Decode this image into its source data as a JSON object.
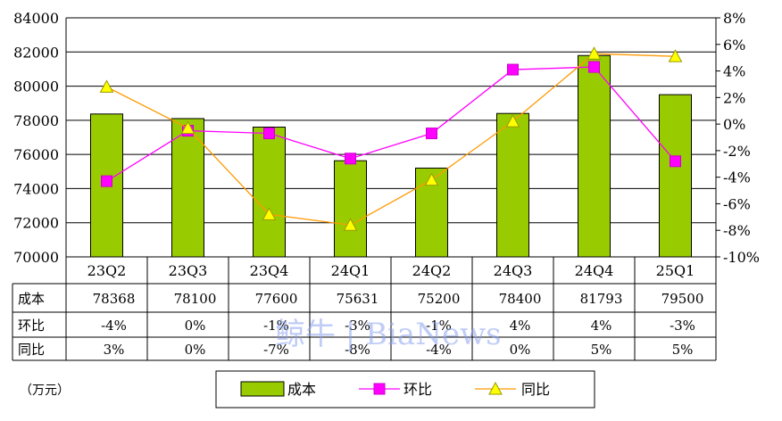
{
  "chart_data": {
    "type": "bar",
    "categories": [
      "23Q2",
      "23Q3",
      "23Q4",
      "24Q1",
      "24Q2",
      "24Q3",
      "24Q4",
      "25Q1"
    ],
    "ylim": [
      70000,
      84000
    ],
    "y_ticks": [
      "70000",
      "72000",
      "74000",
      "76000",
      "78000",
      "80000",
      "82000",
      "84000"
    ],
    "y2lim": [
      -10,
      8
    ],
    "y2_ticks": [
      "-10%",
      "-8%",
      "-6%",
      "-4%",
      "-2%",
      "0%",
      "2%",
      "4%",
      "6%",
      "8%"
    ],
    "grid": true,
    "series": [
      {
        "name": "成本",
        "kind": "bar",
        "axis": "left",
        "color": "#99cc00",
        "values": [
          78368,
          78100,
          77600,
          75631,
          75200,
          78400,
          81793,
          79500
        ]
      },
      {
        "name": "环比",
        "kind": "line",
        "axis": "right",
        "color": "#ff00ff",
        "marker": "square",
        "values": [
          -4.3,
          -0.5,
          -0.7,
          -2.6,
          -0.7,
          4.1,
          4.3,
          -2.8
        ]
      },
      {
        "name": "同比",
        "kind": "line",
        "axis": "right",
        "color": "#ff9900",
        "marker": "triangle",
        "values": [
          2.8,
          -0.3,
          -6.8,
          -7.6,
          -4.2,
          0.2,
          5.3,
          5.1
        ]
      }
    ],
    "table": {
      "rows": [
        {
          "label": "成本",
          "cells": [
            "78368",
            "78100",
            "77600",
            "75631",
            "75200",
            "78400",
            "81793",
            "79500"
          ]
        },
        {
          "label": "环比",
          "cells": [
            "-4%",
            "0%",
            "-1%",
            "-3%",
            "-1%",
            "4%",
            "4%",
            "-3%"
          ]
        },
        {
          "label": "同比",
          "cells": [
            "3%",
            "0%",
            "-7%",
            "-8%",
            "-4%",
            "0%",
            "5%",
            "5%"
          ]
        }
      ]
    },
    "legend": {
      "placement": "bottom",
      "items": [
        {
          "label": "成本",
          "symbol": "bar"
        },
        {
          "label": "环比",
          "symbol": "square-line"
        },
        {
          "label": "同比",
          "symbol": "triangle-line"
        }
      ]
    },
    "unit": "（万元）",
    "watermark": "鲸牛 | BiaNews"
  }
}
